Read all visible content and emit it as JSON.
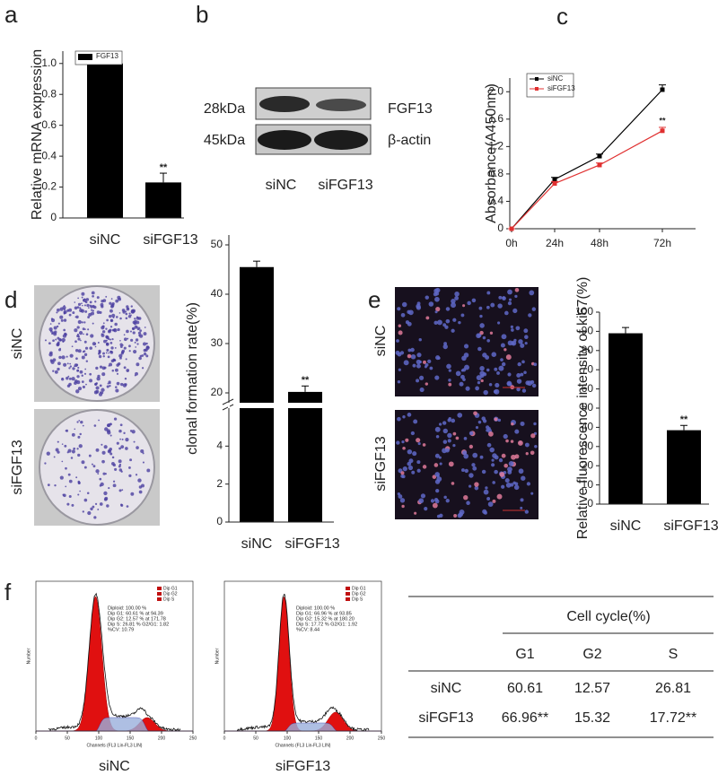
{
  "figure_labels": [
    "a",
    "b",
    "c",
    "d",
    "e",
    "f"
  ],
  "chart_data": [
    {
      "type": "bar",
      "ylabel": "Relative mRNA expression",
      "categories": [
        "siNC",
        "siFGF13"
      ],
      "series": [
        {
          "name": "FGF13",
          "color": "#000000",
          "values": [
            1.0,
            0.23
          ],
          "errors": [
            0,
            0.06
          ]
        }
      ],
      "significance": [
        null,
        "**"
      ],
      "ylim": [
        0,
        1.08
      ],
      "yticks": [
        0,
        0.2,
        0.4,
        0.6,
        0.8,
        {
          "value": 1,
          "label": "1.0"
        }
      ],
      "legend": "upper left"
    },
    {
      "type": "line",
      "ylabel": "Absorbance(A450nm)",
      "categories": [
        "0h",
        "24h",
        "48h",
        "72h"
      ],
      "series": [
        {
          "name": "siNC",
          "color": "#000000",
          "values": [
            0,
            0.72,
            1.06,
            2.03
          ],
          "errors": [
            0,
            0.03,
            0.03,
            0.07
          ]
        },
        {
          "name": "siFGF13",
          "color": "#e03030",
          "values": [
            0,
            0.66,
            0.93,
            1.43
          ],
          "errors": [
            0,
            0.03,
            0.03,
            0.05
          ],
          "significance": [
            null,
            null,
            null,
            "**"
          ]
        }
      ],
      "ylim": [
        0,
        2.2
      ],
      "yticks": [
        0,
        0.4,
        0.8,
        1.2,
        1.6,
        {
          "value": 2,
          "label": "2.0"
        }
      ],
      "legend": "upper left"
    },
    {
      "type": "bar",
      "ylabel": "clonal formation rate(%)",
      "categories": [
        "siNC",
        "siFGF13"
      ],
      "values": [
        45.5,
        20.2
      ],
      "errors": [
        1.2,
        1.2
      ],
      "significance": [
        null,
        "**"
      ],
      "color": "#000000",
      "ylim": [
        0,
        52
      ],
      "ybreak": [
        6,
        18
      ],
      "yticks": [
        0,
        2,
        4,
        20,
        30,
        40,
        50
      ]
    },
    {
      "type": "bar",
      "ylabel": "Relative fluorescence intensity of ki67(%)",
      "categories": [
        "siNC",
        "siFGF13"
      ],
      "values": [
        89,
        38.5
      ],
      "errors": [
        3,
        2.5
      ],
      "significance": [
        null,
        "**"
      ],
      "color": "#000000",
      "ylim": [
        0,
        100
      ],
      "yticks": [
        0,
        10,
        20,
        30,
        40,
        50,
        60,
        70,
        80,
        90,
        100
      ]
    }
  ],
  "blot": {
    "markers": [
      "28kDa",
      "45kDa"
    ],
    "proteins": [
      "FGF13",
      "β-actin"
    ],
    "lanes": [
      "siNC",
      "siFGF13"
    ]
  },
  "colony_photos": {
    "labels": [
      "siNC",
      "siFGF13"
    ]
  },
  "fluorescence_photos": {
    "labels": [
      "siNC",
      "siFGF13"
    ]
  },
  "flow_cytometry": {
    "x_label": "Channels (FL3 Lin-FL3 LIN)",
    "y_label": "Number",
    "xticks": [
      "0",
      "50",
      "100",
      "150",
      "200",
      "250"
    ],
    "legend": [
      "Dip G1",
      "Dip G2",
      "Dip S"
    ],
    "plots": [
      {
        "label": "siNC",
        "stats": [
          "Diploid: 100.00 %",
          "Dip G1: 60.61 % at 94.39",
          "Dip G2: 12.57 % at 171.78",
          "Dip S: 26.81 %  G2/G1: 1.82",
          "%CV: 10.79"
        ]
      },
      {
        "label": "siFGF13",
        "stats": [
          "Diploid: 100.00 %",
          "Dip G1: 66.96 % at 93.85",
          "Dip G2: 15.32 % at 180.20",
          "Dip S: 17.72 %  G2/G1: 1.92",
          "%CV: 8.44"
        ]
      }
    ]
  },
  "table": {
    "title": "Cell cycle(%)",
    "columns": [
      "G1",
      "G2",
      "S"
    ],
    "rows": [
      {
        "label": "siNC",
        "cells": [
          "60.61",
          "12.57",
          "26.81"
        ]
      },
      {
        "label": "siFGF13",
        "cells": [
          "66.96**",
          "15.32",
          "17.72**"
        ]
      }
    ]
  }
}
